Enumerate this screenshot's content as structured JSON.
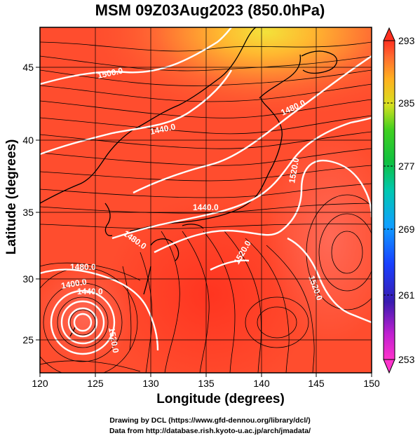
{
  "title": "MSM 09Z03Aug2023 (850.0hPa)",
  "x_axis": {
    "label": "Longitude (degrees)",
    "ticks": [
      "120",
      "125",
      "130",
      "135",
      "140",
      "145",
      "150"
    ],
    "range": [
      120,
      150
    ]
  },
  "y_axis": {
    "label": "Latitude  (degrees)",
    "ticks": [
      "25",
      "30",
      "35",
      "40",
      "45"
    ],
    "range": [
      22.4,
      47.6
    ]
  },
  "colorbar": {
    "ticks": [
      "293",
      "285",
      "277",
      "269",
      "261",
      "253"
    ],
    "range": [
      253,
      293
    ]
  },
  "contours": {
    "color": "#ffffff",
    "labels": [
      "1500.0",
      "1440.0",
      "1480.0",
      "1520.0",
      "1480.0",
      "1520.0",
      "1520.0",
      "1480.0",
      "1440.0",
      "1400.0",
      "1520.0",
      "1440.0"
    ]
  },
  "credits": {
    "line1": "Drawing by DCL (https://www.gfd-dennou.org/library/dcl/)",
    "line2": "Data from http://database.rish.kyoto-u.ac.jp/arch/jmadata/"
  },
  "colors": {
    "field_dominant": "#ff4d2e",
    "land_outline": "#000000",
    "streamline": "#000000"
  }
}
